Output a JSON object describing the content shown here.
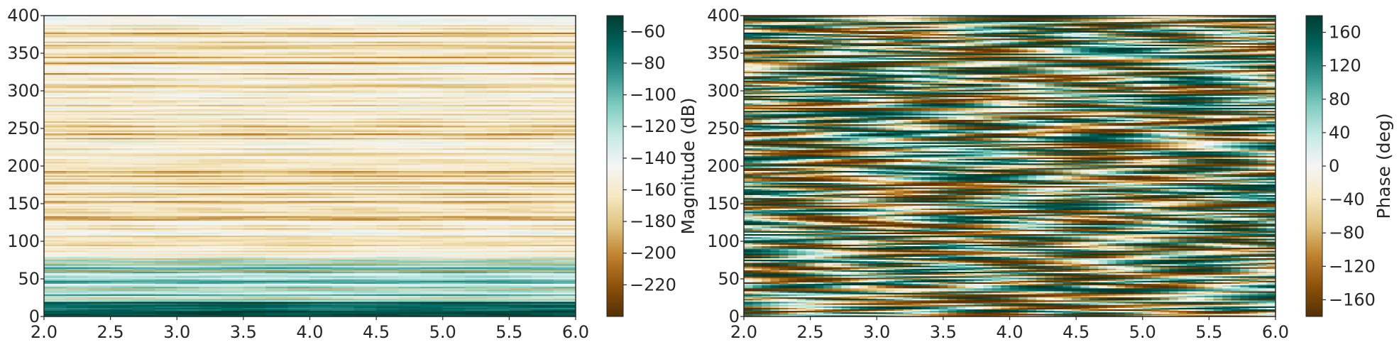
{
  "chart_data": [
    {
      "type": "heatmap",
      "title": "",
      "xlabel": "",
      "ylabel": "",
      "xlim": [
        2.0,
        6.0
      ],
      "ylim": [
        0,
        400
      ],
      "x_ticks": [
        "2.0",
        "2.5",
        "3.0",
        "3.5",
        "4.0",
        "4.5",
        "5.0",
        "5.5",
        "6.0"
      ],
      "y_ticks": [
        "0",
        "50",
        "100",
        "150",
        "200",
        "250",
        "300",
        "350",
        "400"
      ],
      "grid": false,
      "colormap": "BrBG",
      "colorbar": {
        "label": "Magnitude (dB)",
        "range": [
          -240,
          -50
        ],
        "ticks": [
          "−60",
          "−80",
          "−100",
          "−120",
          "−140",
          "−160",
          "−180",
          "−200",
          "−220"
        ]
      },
      "description": "Horizontal banded structure: each frequency row roughly constant over x; strong teal values near 0–20, mostly light beige/teal elsewhere, darker brown stripes scattered, slight discontinuity near x≈4.9."
    },
    {
      "type": "heatmap",
      "title": "",
      "xlabel": "",
      "ylabel": "",
      "xlim": [
        2.0,
        6.0
      ],
      "ylim": [
        0,
        400
      ],
      "x_ticks": [
        "2.0",
        "2.5",
        "3.0",
        "3.5",
        "4.0",
        "4.5",
        "5.0",
        "5.5",
        "6.0"
      ],
      "y_ticks": [
        "0",
        "50",
        "100",
        "150",
        "200",
        "250",
        "300",
        "350",
        "400"
      ],
      "grid": false,
      "colormap": "BrBG",
      "colorbar": {
        "label": "Phase (deg)",
        "range": [
          -180,
          180
        ],
        "ticks": [
          "160",
          "120",
          "80",
          "40",
          "0",
          "−40",
          "−80",
          "−120",
          "−160"
        ]
      },
      "description": "Full-range phase values with horizontal wavy bands alternating brown/white/teal across all frequencies, discontinuity near x≈4.9."
    }
  ],
  "colors": {
    "brbg": [
      "#543005",
      "#8c510a",
      "#bf812d",
      "#dfc27d",
      "#f6e8c3",
      "#f5f5f5",
      "#c7eae5",
      "#80cdc1",
      "#35978f",
      "#01665e",
      "#003c30"
    ]
  }
}
